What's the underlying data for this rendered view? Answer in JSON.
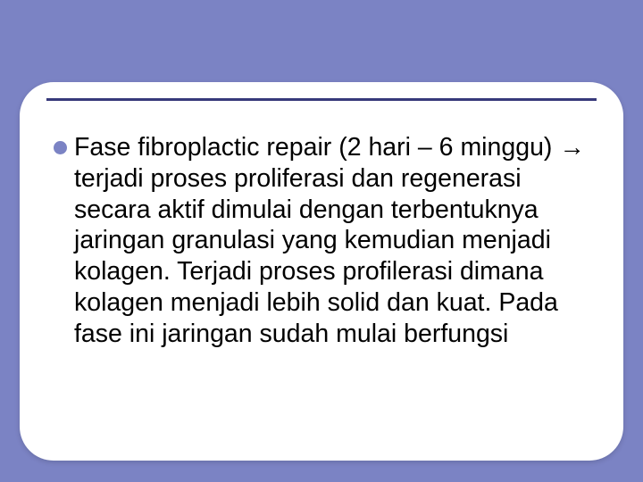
{
  "slide": {
    "background_color": "#7b83c4",
    "card": {
      "background_color": "#ffffff",
      "border_radius": 38,
      "shadow": "0 2px 6px rgba(0,0,0,0.15)"
    },
    "divider_color": "#37397a",
    "bullet_color": "#7b83c4",
    "text_color": "#000000",
    "font_size": 28.5,
    "line_height": 1.22,
    "body_text": "Fase fibroplactic repair (2 hari – 6 minggu) → terjadi proses proliferasi dan regenerasi secara aktif dimulai dengan terbentuknya jaringan granulasi yang kemudian menjadi kolagen. Terjadi proses profilerasi dimana kolagen menjadi lebih solid dan kuat. Pada fase ini jaringan sudah mulai berfungsi"
  }
}
